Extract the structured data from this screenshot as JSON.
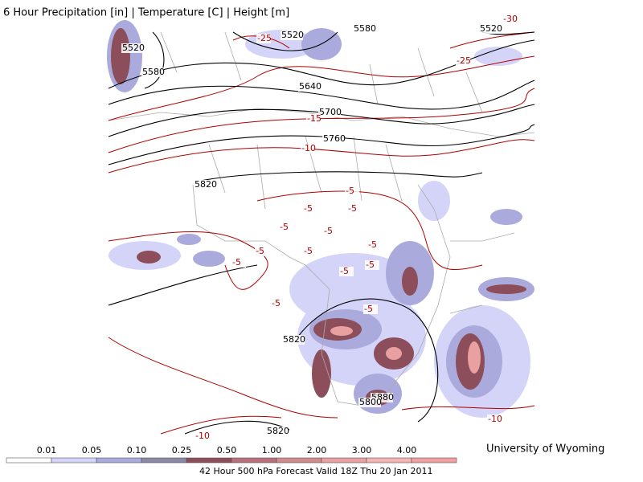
{
  "header": {
    "title": "6 Hour Precipitation [in] | Temperature [C] | Height [m]"
  },
  "map": {
    "height_labels": [
      "5520",
      "5520",
      "5580",
      "5520",
      "5580",
      "5640",
      "5700",
      "5760",
      "5820",
      "5820",
      "5880",
      "5800",
      "5820"
    ],
    "temperature_labels": [
      "-30",
      "-25",
      "-25",
      "-15",
      "-10",
      "-5",
      "-5",
      "-5",
      "-5",
      "-5",
      "-5",
      "-5",
      "-5",
      "-5",
      "-5",
      "-5",
      "-5",
      "-5",
      "-10",
      "-10"
    ]
  },
  "legend": {
    "labels": [
      "0.01",
      "0.05",
      "0.10",
      "0.25",
      "0.50",
      "1.00",
      "2.00",
      "3.00",
      "4.00"
    ],
    "colors": [
      "#ffffff",
      "#d4d4f8",
      "#aaaadc",
      "#8a8aa8",
      "#8c4e5a",
      "#b8707a",
      "#d08c8c",
      "#e8a0a0",
      "#f4b4b4",
      "#f0a0a0"
    ]
  },
  "credit": "University of Wyoming",
  "footer": "42 Hour 500 hPa Forecast Valid 18Z Thu 20 Jan 2011"
}
